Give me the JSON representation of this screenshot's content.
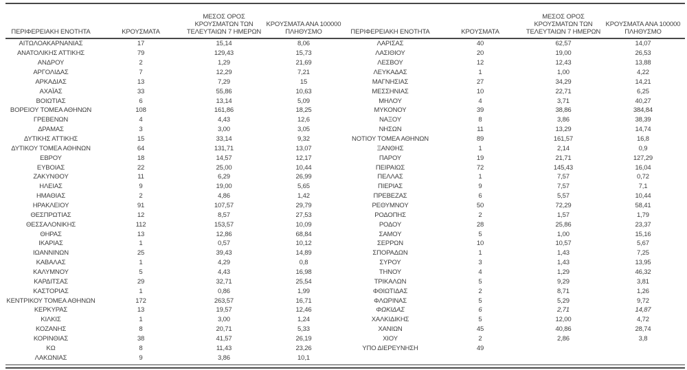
{
  "page": {
    "background": "#ffffff",
    "text_color": "#3d3d3d",
    "rule_color": "#474747"
  },
  "tables": [
    {
      "headers": [
        "ΠΕΡΙΦΕΡΕΙΑΚΗ ΕΝΟΤΗΤΑ",
        "ΚΡΟΥΣΜΑΤΑ",
        "ΜΕΣΟΣ ΟΡΟΣ\nΚΡΟΥΣΜΑΤΩΝ ΤΩΝ\nΤΕΛΕΥΤΑΙΩΝ 7 ΗΜΕΡΩΝ",
        "ΚΡΟΥΣΜΑΤΑ ΑΝΑ 100000\nΠΛΗΘΥΣΜΟ"
      ],
      "italic_rows": [],
      "rows": [
        [
          "ΑΙΤΩΛΟΑΚΑΡΝΑΝΙΑΣ",
          "17",
          "15,14",
          "8,06"
        ],
        [
          "ΑΝΑΤΟΛΙΚΗΣ ΑΤΤΙΚΗΣ",
          "79",
          "129,43",
          "15,73"
        ],
        [
          "ΑΝΔΡΟΥ",
          "2",
          "1,29",
          "21,69"
        ],
        [
          "ΑΡΓΟΛΙΔΑΣ",
          "7",
          "12,29",
          "7,21"
        ],
        [
          "ΑΡΚΑΔΙΑΣ",
          "13",
          "7,29",
          "15"
        ],
        [
          "ΑΧΑΪΑΣ",
          "33",
          "55,86",
          "10,63"
        ],
        [
          "ΒΟΙΩΤΙΑΣ",
          "6",
          "13,14",
          "5,09"
        ],
        [
          "ΒΟΡΕΙΟΥ ΤΟΜΕΑ ΑΘΗΝΩΝ",
          "108",
          "161,86",
          "18,25"
        ],
        [
          "ΓΡΕΒΕΝΩΝ",
          "4",
          "4,43",
          "12,6"
        ],
        [
          "ΔΡΑΜΑΣ",
          "3",
          "3,00",
          "3,05"
        ],
        [
          "ΔΥΤΙΚΗΣ ΑΤΤΙΚΗΣ",
          "15",
          "33,14",
          "9,32"
        ],
        [
          "ΔΥΤΙΚΟΥ ΤΟΜΕΑ ΑΘΗΝΩΝ",
          "64",
          "131,71",
          "13,07"
        ],
        [
          "ΕΒΡΟΥ",
          "18",
          "14,57",
          "12,17"
        ],
        [
          "ΕΥΒΟΙΑΣ",
          "22",
          "25,00",
          "10,44"
        ],
        [
          "ΖΑΚΥΝΘΟΥ",
          "11",
          "6,29",
          "26,99"
        ],
        [
          "ΗΛΕΙΑΣ",
          "9",
          "19,00",
          "5,65"
        ],
        [
          "ΗΜΑΘΙΑΣ",
          "2",
          "4,86",
          "1,42"
        ],
        [
          "ΗΡΑΚΛΕΙΟΥ",
          "91",
          "107,57",
          "29,79"
        ],
        [
          "ΘΕΣΠΡΩΤΙΑΣ",
          "12",
          "8,57",
          "27,53"
        ],
        [
          "ΘΕΣΣΑΛΟΝΙΚΗΣ",
          "112",
          "153,57",
          "10,09"
        ],
        [
          "ΘΗΡΑΣ",
          "13",
          "12,86",
          "68,84"
        ],
        [
          "ΙΚΑΡΙΑΣ",
          "1",
          "0,57",
          "10,12"
        ],
        [
          "ΙΩΑΝΝΙΝΩΝ",
          "25",
          "39,43",
          "14,89"
        ],
        [
          "ΚΑΒΑΛΑΣ",
          "1",
          "4,29",
          "0,8"
        ],
        [
          "ΚΑΛΥΜΝΟΥ",
          "5",
          "4,43",
          "16,98"
        ],
        [
          "ΚΑΡΔΙΤΣΑΣ",
          "29",
          "32,71",
          "25,54"
        ],
        [
          "ΚΑΣΤΟΡΙΑΣ",
          "1",
          "0,86",
          "1,99"
        ],
        [
          "ΚΕΝΤΡΙΚΟΥ ΤΟΜΕΑ ΑΘΗΝΩΝ",
          "172",
          "263,57",
          "16,71"
        ],
        [
          "ΚΕΡΚΥΡΑΣ",
          "13",
          "19,57",
          "12,46"
        ],
        [
          "ΚΙΛΚΙΣ",
          "1",
          "3,00",
          "1,24"
        ],
        [
          "ΚΟΖΑΝΗΣ",
          "8",
          "20,71",
          "5,33"
        ],
        [
          "ΚΟΡΙΝΘΙΑΣ",
          "38",
          "41,57",
          "26,19"
        ],
        [
          "ΚΩ",
          "8",
          "11,43",
          "23,26"
        ],
        [
          "ΛΑΚΩΝΙΑΣ",
          "9",
          "3,86",
          "10,1"
        ]
      ]
    },
    {
      "headers": [
        "ΠΕΡΙΦΕΡΕΙΑΚΗ ΕΝΟΤΗΤΑ",
        "ΚΡΟΥΣΜΑΤΑ",
        "ΜΕΣΟΣ ΟΡΟΣ\nΚΡΟΥΣΜΑΤΩΝ ΤΩΝ\nΤΕΛΕΥΤΑΙΩΝ 7 ΗΜΕΡΩΝ",
        "ΚΡΟΥΣΜΑΤΑ ΑΝΑ 100000\nΠΛΗΘΥΣΜΟ"
      ],
      "italic_rows": [
        28
      ],
      "rows": [
        [
          "ΛΑΡΙΣΑΣ",
          "40",
          "62,57",
          "14,07"
        ],
        [
          "ΛΑΣΙΘΙΟΥ",
          "20",
          "19,00",
          "26,53"
        ],
        [
          "ΛΕΣΒΟΥ",
          "12",
          "12,43",
          "13,88"
        ],
        [
          "ΛΕΥΚΑΔΑΣ",
          "1",
          "1,00",
          "4,22"
        ],
        [
          "ΜΑΓΝΗΣΙΑΣ",
          "27",
          "34,29",
          "14,21"
        ],
        [
          "ΜΕΣΣΗΝΙΑΣ",
          "10",
          "22,71",
          "6,25"
        ],
        [
          "ΜΗΛΟΥ",
          "4",
          "3,71",
          "40,27"
        ],
        [
          "ΜΥΚΟΝΟΥ",
          "39",
          "38,86",
          "384,84"
        ],
        [
          "ΝΑΞΟΥ",
          "8",
          "3,86",
          "38,39"
        ],
        [
          "ΝΗΣΩΝ",
          "11",
          "13,29",
          "14,74"
        ],
        [
          "ΝΟΤΙΟΥ ΤΟΜΕΑ ΑΘΗΝΩΝ",
          "89",
          "161,57",
          "16,8"
        ],
        [
          "ΞΑΝΘΗΣ",
          "1",
          "2,14",
          "0,9"
        ],
        [
          "ΠΑΡΟΥ",
          "19",
          "21,71",
          "127,29"
        ],
        [
          "ΠΕΙΡΑΙΩΣ",
          "72",
          "145,43",
          "16,04"
        ],
        [
          "ΠΕΛΛΑΣ",
          "1",
          "7,57",
          "0,72"
        ],
        [
          "ΠΙΕΡΙΑΣ",
          "9",
          "7,57",
          "7,1"
        ],
        [
          "ΠΡΕΒΕΖΑΣ",
          "6",
          "5,57",
          "10,44"
        ],
        [
          "ΡΕΘΥΜΝΟΥ",
          "50",
          "72,29",
          "58,41"
        ],
        [
          "ΡΟΔΟΠΗΣ",
          "2",
          "1,57",
          "1,79"
        ],
        [
          "ΡΟΔΟΥ",
          "28",
          "25,86",
          "23,37"
        ],
        [
          "ΣΑΜΟΥ",
          "5",
          "1,00",
          "15,16"
        ],
        [
          "ΣΕΡΡΩΝ",
          "10",
          "10,57",
          "5,67"
        ],
        [
          "ΣΠΟΡΑΔΩΝ",
          "1",
          "1,43",
          "7,25"
        ],
        [
          "ΣΥΡΟΥ",
          "3",
          "1,43",
          "13,95"
        ],
        [
          "ΤΗΝΟΥ",
          "4",
          "1,29",
          "46,32"
        ],
        [
          "ΤΡΙΚΑΛΩΝ",
          "5",
          "9,29",
          "3,81"
        ],
        [
          "ΦΘΙΩΤΙΔΑΣ",
          "2",
          "8,71",
          "1,26"
        ],
        [
          "ΦΛΩΡΙΝΑΣ",
          "5",
          "5,29",
          "9,72"
        ],
        [
          "ΦΩΚΙΔΑΣ",
          "6",
          "2,71",
          "14,87"
        ],
        [
          "ΧΑΛΚΙΔΙΚΗΣ",
          "5",
          "12,00",
          "4,72"
        ],
        [
          "ΧΑΝΙΩΝ",
          "45",
          "40,86",
          "28,74"
        ],
        [
          "ΧΙΟΥ",
          "2",
          "2,86",
          "3,8"
        ],
        [
          "ΥΠΟ ΔΙΕΡΕΥΝΗΣΗ",
          "49",
          "",
          ""
        ]
      ]
    }
  ]
}
